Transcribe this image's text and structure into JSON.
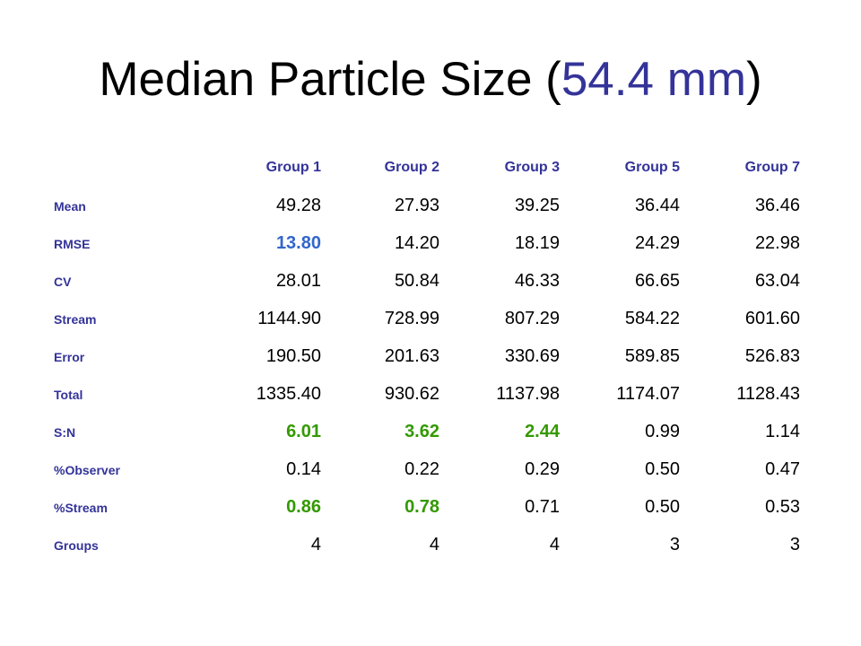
{
  "title": {
    "before": "Median Particle Size (",
    "accent": "54.4 mm",
    "after": ")",
    "accent_color": "#333399"
  },
  "table": {
    "header": [
      "Group 1",
      "Group 2",
      "Group 3",
      "Group 5",
      "Group 7"
    ],
    "rows": [
      {
        "label": "Mean",
        "cells": [
          {
            "text": "49.28"
          },
          {
            "text": "27.93"
          },
          {
            "text": "39.25"
          },
          {
            "text": "36.44"
          },
          {
            "text": "36.46"
          }
        ]
      },
      {
        "label": "RMSE",
        "cells": [
          {
            "text": "13.80",
            "color": "#3366cc"
          },
          {
            "text": "14.20"
          },
          {
            "text": "18.19"
          },
          {
            "text": "24.29"
          },
          {
            "text": "22.98"
          }
        ]
      },
      {
        "label": "CV",
        "cells": [
          {
            "text": "28.01"
          },
          {
            "text": "50.84"
          },
          {
            "text": "46.33"
          },
          {
            "text": "66.65"
          },
          {
            "text": "63.04"
          }
        ]
      },
      {
        "label": "Stream",
        "cells": [
          {
            "text": "1144.90"
          },
          {
            "text": "728.99"
          },
          {
            "text": "807.29"
          },
          {
            "text": "584.22"
          },
          {
            "text": "601.60"
          }
        ]
      },
      {
        "label": "Error",
        "cells": [
          {
            "text": "190.50"
          },
          {
            "text": "201.63"
          },
          {
            "text": "330.69"
          },
          {
            "text": "589.85"
          },
          {
            "text": "526.83"
          }
        ]
      },
      {
        "label": "Total",
        "cells": [
          {
            "text": "1335.40"
          },
          {
            "text": "930.62"
          },
          {
            "text": "1137.98"
          },
          {
            "text": "1174.07"
          },
          {
            "text": "1128.43"
          }
        ]
      },
      {
        "label": "S:N",
        "cells": [
          {
            "text": "6.01",
            "color": "#339900"
          },
          {
            "text": "3.62",
            "color": "#339900"
          },
          {
            "text": "2.44",
            "color": "#339900"
          },
          {
            "text": "0.99"
          },
          {
            "text": "1.14"
          }
        ]
      },
      {
        "label": "%Observer",
        "cells": [
          {
            "text": "0.14"
          },
          {
            "text": "0.22"
          },
          {
            "text": "0.29"
          },
          {
            "text": "0.50"
          },
          {
            "text": "0.47"
          }
        ]
      },
      {
        "label": "%Stream",
        "cells": [
          {
            "text": "0.86",
            "color": "#339900"
          },
          {
            "text": "0.78",
            "color": "#339900"
          },
          {
            "text": "0.71"
          },
          {
            "text": "0.50"
          },
          {
            "text": "0.53"
          }
        ]
      },
      {
        "label": "Groups",
        "cells": [
          {
            "text": "4"
          },
          {
            "text": "4"
          },
          {
            "text": "4"
          },
          {
            "text": "3"
          },
          {
            "text": "3"
          }
        ]
      }
    ]
  }
}
